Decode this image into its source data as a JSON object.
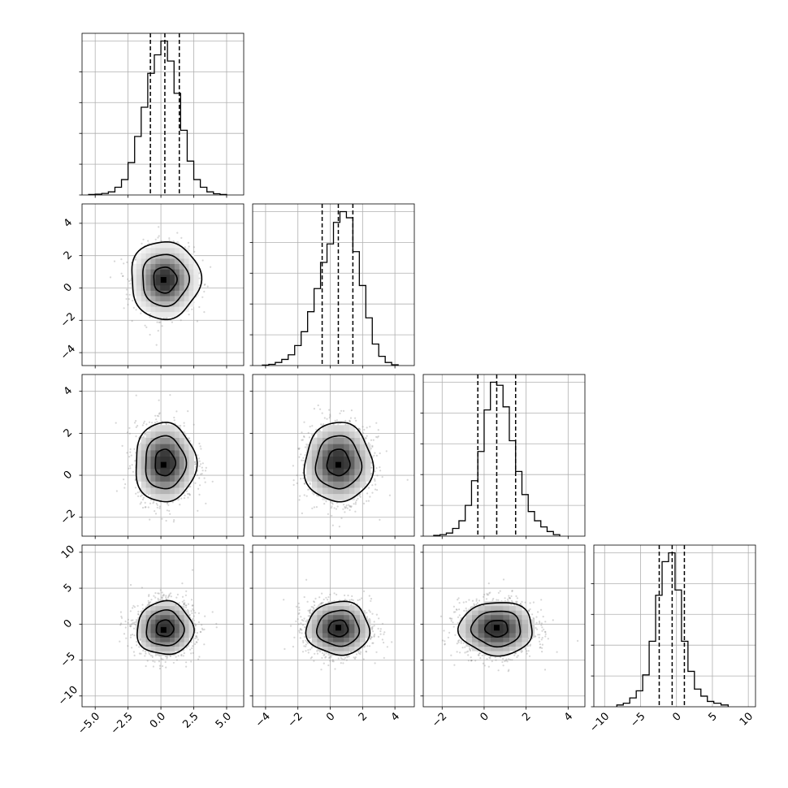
{
  "chart_data": {
    "type": "corner",
    "grid": true,
    "variables": [
      {
        "lim": [
          -6,
          6.3
        ],
        "ticks": [
          -5.0,
          -2.5,
          0.0,
          2.5,
          5.0
        ],
        "tick_labels": [
          "−5.0",
          "−2.5",
          "0.0",
          "2.5",
          "5.0"
        ],
        "mean": 0.3,
        "sd": 1.1,
        "quantiles": [
          -0.8,
          0.3,
          1.4
        ],
        "hist": {
          "edges": [
            -5.5,
            -5.0,
            -4.5,
            -4.0,
            -3.5,
            -3.0,
            -2.5,
            -2.0,
            -1.5,
            -1.0,
            -0.5,
            0.0,
            0.5,
            1.0,
            1.5,
            2.0,
            2.5,
            3.0,
            3.5,
            4.0,
            4.5,
            5.0
          ],
          "counts": [
            0.003,
            0.005,
            0.01,
            0.02,
            0.05,
            0.1,
            0.21,
            0.38,
            0.57,
            0.79,
            0.91,
            1.0,
            0.87,
            0.66,
            0.42,
            0.22,
            0.1,
            0.05,
            0.02,
            0.008,
            0.003
          ]
        }
      },
      {
        "lim": [
          -4.8,
          5.2
        ],
        "ticks": [
          -4,
          -2,
          0,
          2,
          4
        ],
        "tick_labels": [
          "−4",
          "−2",
          "0",
          "2",
          "4"
        ],
        "mean": 0.5,
        "sd": 1.0,
        "quantiles": [
          -0.5,
          0.5,
          1.4
        ],
        "hist": {
          "edges": [
            -4.2,
            -3.8,
            -3.4,
            -3.0,
            -2.6,
            -2.2,
            -1.8,
            -1.4,
            -1.0,
            -0.6,
            -0.2,
            0.2,
            0.6,
            1.0,
            1.4,
            1.8,
            2.2,
            2.6,
            3.0,
            3.4,
            3.8,
            4.2
          ],
          "counts": [
            0.003,
            0.008,
            0.02,
            0.04,
            0.07,
            0.13,
            0.22,
            0.35,
            0.5,
            0.67,
            0.79,
            0.93,
            1.0,
            0.96,
            0.74,
            0.52,
            0.31,
            0.14,
            0.06,
            0.02,
            0.005
          ]
        }
      },
      {
        "lim": [
          -2.9,
          4.8
        ],
        "ticks": [
          -2,
          0,
          2,
          4
        ],
        "tick_labels": [
          "−2",
          "0",
          "2",
          "4"
        ],
        "mean": 0.6,
        "sd": 0.9,
        "quantiles": [
          -0.3,
          0.6,
          1.5
        ],
        "hist": {
          "edges": [
            -2.4,
            -2.1,
            -1.8,
            -1.5,
            -1.2,
            -0.9,
            -0.6,
            -0.3,
            0.0,
            0.3,
            0.6,
            0.9,
            1.2,
            1.5,
            1.8,
            2.1,
            2.4,
            2.7,
            3.0,
            3.3,
            3.6
          ],
          "counts": [
            0.005,
            0.01,
            0.02,
            0.05,
            0.1,
            0.2,
            0.36,
            0.55,
            0.82,
            1.0,
            0.98,
            0.84,
            0.62,
            0.42,
            0.27,
            0.16,
            0.1,
            0.06,
            0.03,
            0.01
          ]
        }
      },
      {
        "lim": [
          -11.5,
          11
        ],
        "ticks": [
          -10,
          -5,
          0,
          5,
          10
        ],
        "tick_labels": [
          "−10",
          "−5",
          "0",
          "5",
          "10"
        ],
        "mean": -0.6,
        "sd": 1.9,
        "quantiles": [
          -2.4,
          -0.6,
          1.1
        ],
        "hist": {
          "edges": [
            -8.3,
            -7.4,
            -6.5,
            -5.6,
            -4.7,
            -3.8,
            -2.9,
            -2.0,
            -1.1,
            -0.2,
            0.7,
            1.6,
            2.5,
            3.4,
            4.3,
            5.2,
            6.2,
            7.2
          ],
          "counts": [
            0.01,
            0.02,
            0.05,
            0.09,
            0.18,
            0.37,
            0.63,
            0.82,
            0.87,
            0.66,
            0.37,
            0.2,
            0.1,
            0.06,
            0.03,
            0.02,
            0.01
          ]
        }
      }
    ],
    "pairs": [
      {
        "row": 1,
        "col": 0,
        "levels": [
          0.8,
          1.6,
          2.4
        ],
        "centroid": [
          0.2,
          0.5
        ]
      },
      {
        "row": 2,
        "col": 0,
        "levels": [
          0.7,
          1.4,
          2.1
        ],
        "centroid": [
          0.2,
          0.5
        ]
      },
      {
        "row": 2,
        "col": 1,
        "levels": [
          0.7,
          1.4,
          2.1
        ],
        "centroid": [
          0.5,
          0.5
        ]
      },
      {
        "row": 3,
        "col": 0,
        "levels": [
          0.6,
          1.3,
          1.95
        ],
        "centroid": [
          0.2,
          -0.8
        ]
      },
      {
        "row": 3,
        "col": 1,
        "levels": [
          0.6,
          1.3,
          1.95
        ],
        "centroid": [
          0.5,
          -0.5
        ]
      },
      {
        "row": 3,
        "col": 2,
        "levels": [
          0.6,
          1.3,
          1.95
        ],
        "centroid": [
          0.6,
          -0.5
        ]
      }
    ]
  }
}
